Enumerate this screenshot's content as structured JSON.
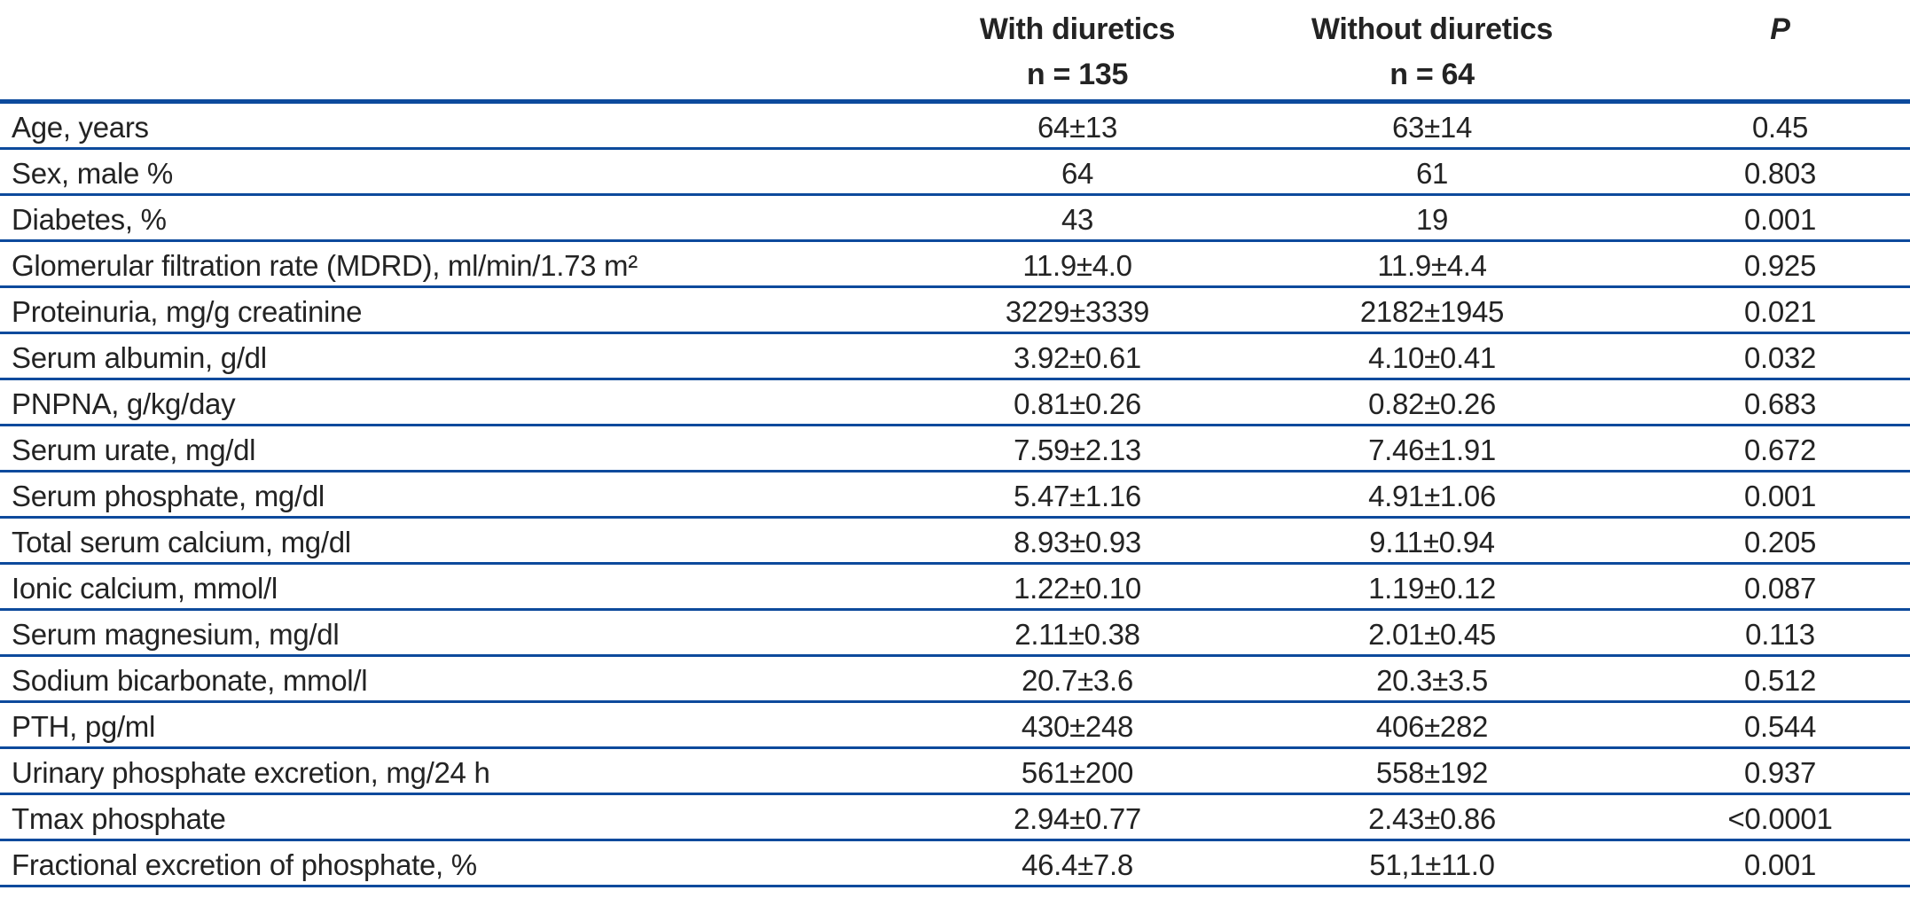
{
  "table": {
    "columns": {
      "group_with": {
        "title": "With diuretics",
        "n": "n = 135"
      },
      "group_without": {
        "title": "Without diuretics",
        "n": "n = 64"
      },
      "p": {
        "title": "P"
      }
    },
    "rows": [
      {
        "label": "Age, years",
        "with_diuretics": "64±13",
        "without_diuretics": "63±14",
        "p": "0.45"
      },
      {
        "label": "Sex, male %",
        "with_diuretics": "64",
        "without_diuretics": "61",
        "p": "0.803"
      },
      {
        "label": "Diabetes, %",
        "with_diuretics": "43",
        "without_diuretics": "19",
        "p": "0.001"
      },
      {
        "label": "Glomerular filtration rate (MDRD), ml/min/1.73 m²",
        "with_diuretics": "11.9±4.0",
        "without_diuretics": "11.9±4.4",
        "p": "0.925"
      },
      {
        "label": "Proteinuria, mg/g creatinine",
        "with_diuretics": "3229±3339",
        "without_diuretics": "2182±1945",
        "p": "0.021"
      },
      {
        "label": "Serum albumin, g/dl",
        "with_diuretics": "3.92±0.61",
        "without_diuretics": "4.10±0.41",
        "p": "0.032"
      },
      {
        "label": "PNPNA, g/kg/day",
        "with_diuretics": "0.81±0.26",
        "without_diuretics": "0.82±0.26",
        "p": "0.683"
      },
      {
        "label": "Serum urate, mg/dl",
        "with_diuretics": "7.59±2.13",
        "without_diuretics": "7.46±1.91",
        "p": "0.672"
      },
      {
        "label": "Serum phosphate, mg/dl",
        "with_diuretics": "5.47±1.16",
        "without_diuretics": "4.91±1.06",
        "p": "0.001"
      },
      {
        "label": "Total serum calcium, mg/dl",
        "with_diuretics": "8.93±0.93",
        "without_diuretics": "9.11±0.94",
        "p": "0.205"
      },
      {
        "label": "Ionic calcium, mmol/l",
        "with_diuretics": "1.22±0.10",
        "without_diuretics": "1.19±0.12",
        "p": "0.087"
      },
      {
        "label": "Serum magnesium, mg/dl",
        "with_diuretics": "2.11±0.38",
        "without_diuretics": "2.01±0.45",
        "p": "0.113"
      },
      {
        "label": "Sodium bicarbonate, mmol/l",
        "with_diuretics": "20.7±3.6",
        "without_diuretics": "20.3±3.5",
        "p": "0.512"
      },
      {
        "label": "PTH, pg/ml",
        "with_diuretics": "430±248",
        "without_diuretics": "406±282",
        "p": "0.544"
      },
      {
        "label": "Urinary phosphate excretion, mg/24 h",
        "with_diuretics": "561±200",
        "without_diuretics": "558±192",
        "p": "0.937"
      },
      {
        "label": "Tmax phosphate",
        "with_diuretics": "2.94±0.77",
        "without_diuretics": "2.43±0.86",
        "p": "<0.0001"
      },
      {
        "label": "Fractional excretion of phosphate, %",
        "with_diuretics": "46.4±7.8",
        "without_diuretics": "51,1±11.0",
        "p": "0.001"
      }
    ]
  },
  "colors": {
    "rule_blue": "#0d4a9c",
    "text": "#232323"
  }
}
